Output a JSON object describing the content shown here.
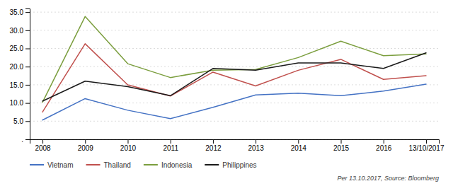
{
  "chart_data": {
    "type": "line",
    "categories": [
      "2008",
      "2009",
      "2010",
      "2011",
      "2012",
      "2013",
      "2014",
      "2015",
      "2016",
      "13/10/2017"
    ],
    "series": [
      {
        "name": "Vietnam",
        "color": "#4472C4",
        "values": [
          5.3,
          11.2,
          8.0,
          5.7,
          8.8,
          12.2,
          12.7,
          12.0,
          13.3,
          15.2
        ]
      },
      {
        "name": "Thailand",
        "color": "#C0504D",
        "values": [
          7.5,
          26.3,
          15.0,
          11.9,
          18.5,
          14.7,
          19.0,
          22.0,
          16.5,
          17.5
        ]
      },
      {
        "name": "Indonesia",
        "color": "#7B9E3E",
        "values": [
          10.2,
          33.8,
          20.8,
          17.0,
          19.0,
          19.2,
          22.5,
          27.0,
          23.0,
          23.5
        ]
      },
      {
        "name": "Philippines",
        "color": "#1A1A1A",
        "values": [
          10.5,
          16.0,
          14.5,
          12.0,
          19.5,
          19.0,
          21.0,
          21.0,
          19.5,
          23.8
        ]
      }
    ],
    "ylim": [
      0,
      36
    ],
    "yticks": [
      {
        "value": 0,
        "label": "."
      },
      {
        "value": 5.0,
        "label": "5.0"
      },
      {
        "value": 10.0,
        "label": "10.0"
      },
      {
        "value": 15.0,
        "label": "15.0"
      },
      {
        "value": 20.0,
        "label": "20.0"
      },
      {
        "value": 25.0,
        "label": "25.0"
      },
      {
        "value": 30.0,
        "label": "30.0"
      },
      {
        "value": 35.0,
        "label": "35.0"
      }
    ],
    "grid": true,
    "legend": "bottom",
    "annotations": [
      "Per 13.10.2017, Source: Bloomberg"
    ]
  }
}
